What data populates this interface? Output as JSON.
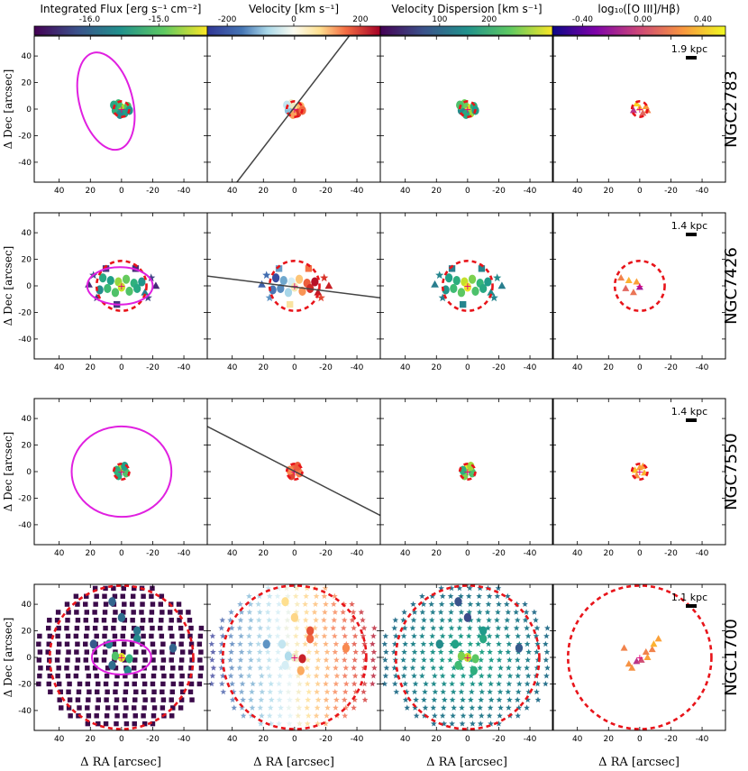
{
  "chart_data": {
    "type": "scatter",
    "layout": "4x4 grid of spatial maps",
    "xlabel": "Δ RA [arcsec]",
    "ylabel": "Δ Dec [arcsec]",
    "xlim": [
      56,
      -55
    ],
    "ylim": [
      -55,
      55
    ],
    "xticks": [
      40,
      20,
      0,
      -20,
      -40
    ],
    "yticks": [
      40,
      20,
      0,
      -20,
      -40
    ],
    "columns": [
      {
        "title": "Integrated Flux [erg s⁻¹ cm⁻²]",
        "colormap": "viridis",
        "cmin": -16.8,
        "cmax": -14.3,
        "ticks": [
          -16.0,
          -15.0
        ],
        "tick_labels": [
          "-16.0",
          "-15.0"
        ]
      },
      {
        "title": "Velocity [km s⁻¹]",
        "colormap": "RdYlBu_r",
        "cmin": -260,
        "cmax": 260,
        "ticks": [
          -200,
          0,
          200
        ],
        "tick_labels": [
          "-200",
          "0",
          "200"
        ]
      },
      {
        "title": "Velocity Dispersion [km s⁻¹]",
        "colormap": "viridis",
        "cmin": -20,
        "cmax": 330,
        "ticks": [
          100,
          200
        ],
        "tick_labels": [
          "100",
          "200"
        ]
      },
      {
        "title": "log₁₀([O III]/Hβ)",
        "colormap": "plasma",
        "cmin": -0.6,
        "cmax": 0.55,
        "ticks": [
          -0.4,
          0.0,
          0.4
        ],
        "tick_labels": [
          "-0.40",
          "0.00",
          "0.40"
        ]
      }
    ],
    "rows": [
      {
        "galaxy": "NGC2783",
        "scalebar_label": "1.9 kpc",
        "red_circle": {
          "center": [
            0,
            0
          ],
          "radius": 5
        },
        "magenta_ellipse": {
          "center": [
            10,
            6
          ],
          "semi_x": 17,
          "semi_y": 32,
          "angle_deg": -15
        },
        "position_angle_line": {
          "x1": -35,
          "y1": 55,
          "x2": 37,
          "y2": -55
        },
        "spaxels": [
          {
            "x": 0,
            "y": 1,
            "flux": -14.6,
            "vel": 30,
            "disp": 310,
            "ratio": 0.35,
            "marker": "circle"
          },
          {
            "x": -4,
            "y": 2,
            "flux": -15.0,
            "vel": 80,
            "disp": 200,
            "ratio": 0.3,
            "marker": "circle"
          },
          {
            "x": 4,
            "y": -1,
            "flux": -15.2,
            "vel": -120,
            "disp": 150,
            "ratio": -0.1,
            "marker": "circle"
          },
          {
            "x": -2,
            "y": -3,
            "flux": -15.4,
            "vel": 200,
            "disp": 280,
            "ratio": 0.1,
            "marker": "circle"
          },
          {
            "x": 2,
            "y": 4,
            "flux": -15.1,
            "vel": 0,
            "disp": 250,
            "ratio": 0.45,
            "marker": "circle"
          },
          {
            "x": -5,
            "y": -1,
            "flux": -15.5,
            "vel": 150,
            "disp": 170,
            "ratio": 0.2,
            "marker": "circle"
          },
          {
            "x": 5,
            "y": 3,
            "flux": -15.3,
            "vel": -60,
            "disp": 230,
            "ratio": 0.4,
            "marker": "circle"
          },
          {
            "x": 1,
            "y": -4,
            "flux": -15.6,
            "vel": 100,
            "disp": 190,
            "ratio": 0.25,
            "marker": "circle"
          }
        ]
      },
      {
        "galaxy": "NGC7426",
        "scalebar_label": "1.4 kpc",
        "red_circle": {
          "center": [
            0,
            0
          ],
          "radius": 16
        },
        "magenta_ellipse": {
          "center": [
            1,
            0
          ],
          "semi_x": 21,
          "semi_y": 12,
          "angle_deg": 0
        },
        "position_angle_line": {
          "x1": 60,
          "y1": 8,
          "x2": -55,
          "y2": -9
        },
        "spaxels": [
          {
            "x": 12,
            "y": 6,
            "flux": -15.3,
            "vel": -240,
            "disp": 180,
            "ratio": 0.2,
            "marker": "circle"
          },
          {
            "x": 9,
            "y": -2,
            "flux": -15.1,
            "vel": -180,
            "disp": 220,
            "ratio": 0.1,
            "marker": "circle"
          },
          {
            "x": 7,
            "y": 4,
            "flux": -15.4,
            "vel": -150,
            "disp": 200,
            "ratio": 0.35,
            "marker": "circle"
          },
          {
            "x": 4,
            "y": -5,
            "flux": -15.0,
            "vel": -90,
            "disp": 240,
            "ratio": 0.15,
            "marker": "circle"
          },
          {
            "x": 2,
            "y": 3,
            "flux": -14.7,
            "vel": -40,
            "disp": 300,
            "ratio": 0.3,
            "marker": "circle"
          },
          {
            "x": 0,
            "y": -1,
            "flux": -14.5,
            "vel": 10,
            "disp": 320,
            "ratio": -0.2,
            "marker": "circle"
          },
          {
            "x": -3,
            "y": 5,
            "flux": -14.9,
            "vel": 60,
            "disp": 260,
            "ratio": 0.25,
            "marker": "circle"
          },
          {
            "x": -5,
            "y": -4,
            "flux": -15.0,
            "vel": 110,
            "disp": 230,
            "ratio": 0.4,
            "marker": "circle"
          },
          {
            "x": -8,
            "y": 2,
            "flux": -15.2,
            "vel": 160,
            "disp": 210,
            "ratio": 0.35,
            "marker": "circle"
          },
          {
            "x": -10,
            "y": -2,
            "flux": -15.3,
            "vel": 210,
            "disp": 190,
            "ratio": 0.3,
            "marker": "circle"
          },
          {
            "x": -13,
            "y": 3,
            "flux": -15.5,
            "vel": 240,
            "disp": 170,
            "ratio": 0.35,
            "marker": "circle"
          },
          {
            "x": 14,
            "y": -3,
            "flux": -15.6,
            "vel": -200,
            "disp": 160,
            "ratio": 0.3,
            "marker": "circle"
          },
          {
            "x": -15,
            "y": -5,
            "flux": -15.7,
            "vel": 230,
            "disp": 150,
            "ratio": 0.3,
            "marker": "triangle"
          },
          {
            "x": 18,
            "y": 8,
            "flux": -16.2,
            "vel": -210,
            "disp": 140,
            "ratio": 0.3,
            "marker": "star"
          },
          {
            "x": -19,
            "y": 6,
            "flux": -16.3,
            "vel": 200,
            "disp": 150,
            "ratio": 0.3,
            "marker": "star"
          },
          {
            "x": 16,
            "y": -9,
            "flux": -16.4,
            "vel": -170,
            "disp": 130,
            "ratio": 0.3,
            "marker": "star"
          },
          {
            "x": -17,
            "y": -9,
            "flux": -16.3,
            "vel": 180,
            "disp": 140,
            "ratio": 0.3,
            "marker": "star"
          },
          {
            "x": 10,
            "y": 13,
            "flux": -16.4,
            "vel": -160,
            "disp": 130,
            "ratio": 0.3,
            "marker": "square"
          },
          {
            "x": -9,
            "y": 13,
            "flux": -16.5,
            "vel": 140,
            "disp": 140,
            "ratio": 0.3,
            "marker": "square"
          },
          {
            "x": 3,
            "y": -14,
            "flux": -16.4,
            "vel": 20,
            "disp": 140,
            "ratio": 0.3,
            "marker": "square"
          },
          {
            "x": -22,
            "y": 0,
            "flux": -16.5,
            "vel": 220,
            "disp": 130,
            "ratio": 0.3,
            "marker": "triangle"
          },
          {
            "x": 21,
            "y": 1,
            "flux": -16.5,
            "vel": -220,
            "disp": 130,
            "ratio": 0.3,
            "marker": "triangle"
          }
        ]
      },
      {
        "galaxy": "NGC7550",
        "scalebar_label": "1.4 kpc",
        "red_circle": {
          "center": [
            0,
            0
          ],
          "radius": 5
        },
        "magenta_ellipse": {
          "center": [
            0,
            0
          ],
          "semi_x": 32,
          "semi_y": 29,
          "angle_deg": 0
        },
        "position_angle_line": {
          "x1": 56,
          "y1": 34,
          "x2": -55,
          "y2": -33
        },
        "spaxels": [
          {
            "x": 0,
            "y": 3,
            "flux": -14.6,
            "vel": 150,
            "disp": 320,
            "ratio": 0.3,
            "marker": "circle"
          },
          {
            "x": -3,
            "y": -1,
            "flux": -15.0,
            "vel": 130,
            "disp": 230,
            "ratio": 0.35,
            "marker": "circle"
          },
          {
            "x": 2,
            "y": -3,
            "flux": -15.3,
            "vel": 180,
            "disp": 260,
            "ratio": 0.25,
            "marker": "circle"
          },
          {
            "x": 3,
            "y": 1,
            "flux": -15.2,
            "vel": 120,
            "disp": 200,
            "ratio": 0.4,
            "marker": "circle"
          },
          {
            "x": -2,
            "y": 4,
            "flux": -15.4,
            "vel": 160,
            "disp": 280,
            "ratio": 0.3,
            "marker": "circle"
          }
        ]
      },
      {
        "galaxy": "NGC1700",
        "scalebar_label": "1.1 kpc",
        "red_circle": {
          "center": [
            0,
            0
          ],
          "radius": 46
        },
        "magenta_ellipse": {
          "center": [
            0,
            0
          ],
          "semi_x": 19,
          "semi_y": 11,
          "angle_deg": 0
        },
        "position_angle_line": null,
        "spaxels": [
          {
            "x": 0,
            "y": 0,
            "flux": -14.4,
            "vel": 0,
            "disp": 300,
            "ratio": 0.2,
            "marker": "circle"
          },
          {
            "x": 4,
            "y": 1,
            "flux": -15.0,
            "vel": -80,
            "disp": 260,
            "ratio": 0.3,
            "marker": "circle"
          },
          {
            "x": -5,
            "y": -1,
            "flux": -15.2,
            "vel": 220,
            "disp": 240,
            "ratio": 0.3,
            "marker": "circle"
          },
          {
            "x": -10,
            "y": 14,
            "flux": -15.6,
            "vel": 150,
            "disp": 190,
            "ratio": 0.3,
            "marker": "circle"
          },
          {
            "x": -4,
            "y": -10,
            "flux": -15.6,
            "vel": 90,
            "disp": 200,
            "ratio": 0.3,
            "marker": "circle"
          },
          {
            "x": 8,
            "y": 10,
            "flux": -15.7,
            "vel": -60,
            "disp": 180,
            "ratio": 0.3,
            "marker": "circle"
          },
          {
            "x": 0,
            "y": 30,
            "flux": -15.9,
            "vel": 40,
            "disp": 60,
            "ratio": 0.3,
            "marker": "circle"
          },
          {
            "x": 6,
            "y": 42,
            "flux": -16.0,
            "vel": 30,
            "disp": 70,
            "ratio": 0.3,
            "marker": "circle"
          },
          {
            "x": -10,
            "y": 20,
            "flux": -15.8,
            "vel": 170,
            "disp": 170,
            "ratio": 0.3,
            "marker": "circle"
          },
          {
            "x": -33,
            "y": 7,
            "flux": -16.0,
            "vel": 120,
            "disp": 80,
            "ratio": 0.3,
            "marker": "circle"
          },
          {
            "x": 18,
            "y": 10,
            "flux": -16.1,
            "vel": -170,
            "disp": 150,
            "ratio": 0.3,
            "marker": "circle"
          },
          {
            "x": 6,
            "y": -6,
            "flux": -15.9,
            "vel": -40,
            "disp": 220,
            "ratio": 0.3,
            "marker": "circle"
          }
        ],
        "ratio_points": [
          {
            "x": 2,
            "y": -3,
            "ratio": -0.1
          },
          {
            "x": -1,
            "y": -2,
            "ratio": 0.0
          },
          {
            "x": 5,
            "y": -8,
            "ratio": 0.25
          },
          {
            "x": -5,
            "y": 0,
            "ratio": 0.3
          },
          {
            "x": -8,
            "y": 6,
            "ratio": 0.2
          },
          {
            "x": -9,
            "y": 10,
            "ratio": 0.35
          },
          {
            "x": -12,
            "y": 14,
            "ratio": 0.3
          },
          {
            "x": 7,
            "y": -5,
            "ratio": 0.25
          },
          {
            "x": 10,
            "y": 7,
            "ratio": 0.2
          },
          {
            "x": -4,
            "y": 4,
            "ratio": 0.2
          }
        ]
      }
    ]
  }
}
